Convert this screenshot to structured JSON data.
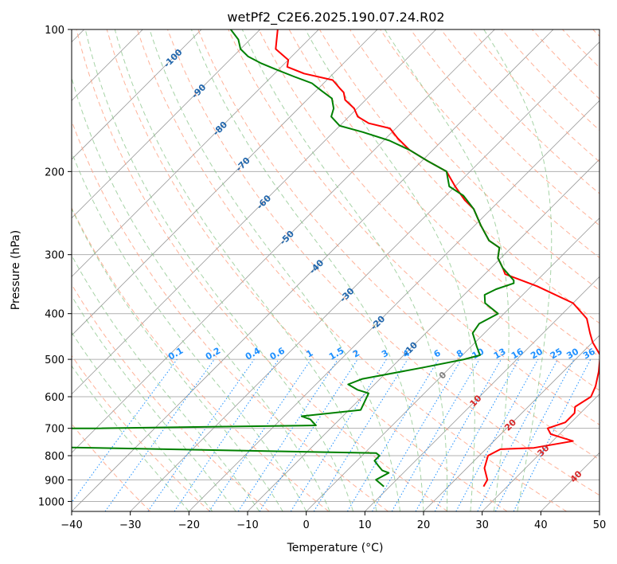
{
  "chart_data": {
    "type": "line",
    "title": "wetPf2_C2E6.2025.190.07.24.R02",
    "xlabel": "Temperature (°C)",
    "ylabel": "Pressure (hPa)",
    "xlim": [
      -40,
      50
    ],
    "ylim": [
      1050,
      100
    ],
    "y_scale": "log",
    "x_ticks": [
      -40,
      -30,
      -20,
      -10,
      0,
      10,
      20,
      30,
      40,
      50
    ],
    "y_ticks": [
      100,
      200,
      300,
      400,
      500,
      600,
      700,
      800,
      900,
      1000
    ],
    "grid": true,
    "skew": true,
    "colors": {
      "temperature": "#ff0000",
      "dewpoint": "#008000",
      "isotherm": "#999999",
      "dry_adiabat": "#ff9f80",
      "moist_adiabat": "#80c080",
      "mixing_ratio": "#1e90ff",
      "isotherm_label_upper": "#2166ac",
      "isotherm_label_lower": "#d62728",
      "freezing_label": "#808080"
    },
    "series": [
      {
        "key": "temperature",
        "points": [
          [
            26.0,
            930
          ],
          [
            25.5,
            900
          ],
          [
            23.0,
            850
          ],
          [
            21.5,
            800
          ],
          [
            22.5,
            775
          ],
          [
            28.0,
            770
          ],
          [
            33.5,
            745
          ],
          [
            28.5,
            720
          ],
          [
            27.0,
            700
          ],
          [
            29.0,
            680
          ],
          [
            29.0,
            650
          ],
          [
            28.0,
            630
          ],
          [
            29.0,
            600
          ],
          [
            28.0,
            570
          ],
          [
            26.0,
            530
          ],
          [
            23.5,
            490
          ],
          [
            20.0,
            460
          ],
          [
            18.0,
            440
          ],
          [
            15.0,
            410
          ],
          [
            10.0,
            380
          ],
          [
            1.0,
            350
          ],
          [
            -6.5,
            330
          ],
          [
            -8.0,
            320
          ],
          [
            -10.5,
            305
          ],
          [
            -12.0,
            290
          ],
          [
            -15.0,
            280
          ],
          [
            -19.0,
            260
          ],
          [
            -23.0,
            240
          ],
          [
            -26.0,
            230
          ],
          [
            -30.0,
            215
          ],
          [
            -34.0,
            200
          ],
          [
            -39.0,
            190
          ],
          [
            -44.0,
            180
          ],
          [
            -48.0,
            170
          ],
          [
            -51.0,
            162
          ],
          [
            -55.5,
            158
          ],
          [
            -58.5,
            153
          ],
          [
            -60.5,
            147
          ],
          [
            -63.5,
            141
          ],
          [
            -65.0,
            136
          ],
          [
            -66.5,
            133
          ],
          [
            -69.0,
            128
          ],
          [
            -75.0,
            124
          ],
          [
            -79.0,
            120
          ],
          [
            -80.0,
            116
          ],
          [
            -84.0,
            110
          ],
          [
            -87.0,
            100
          ]
        ]
      },
      {
        "key": "dewpoint",
        "points": [
          [
            9.0,
            930
          ],
          [
            6.5,
            900
          ],
          [
            7.5,
            870
          ],
          [
            6.0,
            860
          ],
          [
            4.5,
            840
          ],
          [
            3.0,
            820
          ],
          [
            3.0,
            800
          ],
          [
            2.0,
            790
          ],
          [
            -60.0,
            765
          ],
          [
            -100.0,
            750
          ],
          [
            -80.0,
            700
          ],
          [
            -50.0,
            700
          ],
          [
            -13.0,
            690
          ],
          [
            -15.0,
            670
          ],
          [
            -17.0,
            660
          ],
          [
            -8.0,
            640
          ],
          [
            -9.5,
            590
          ],
          [
            -12.0,
            580
          ],
          [
            -14.5,
            565
          ],
          [
            -13.0,
            550
          ],
          [
            -4.5,
            520
          ],
          [
            1.0,
            500
          ],
          [
            3.0,
            490
          ],
          [
            1.0,
            470
          ],
          [
            -2.0,
            440
          ],
          [
            -2.5,
            420
          ],
          [
            -1.0,
            400
          ],
          [
            -5.0,
            380
          ],
          [
            -6.5,
            365
          ],
          [
            -5.5,
            355
          ],
          [
            -3.5,
            345
          ],
          [
            -4.0,
            340
          ],
          [
            -8.0,
            320
          ],
          [
            -10.5,
            305
          ],
          [
            -12.0,
            290
          ],
          [
            -15.0,
            280
          ],
          [
            -19.0,
            260
          ],
          [
            -23.0,
            240
          ],
          [
            -27.0,
            225
          ],
          [
            -31.0,
            215
          ],
          [
            -34.0,
            200
          ],
          [
            -39.0,
            190
          ],
          [
            -44.0,
            180
          ],
          [
            -49.0,
            172
          ],
          [
            -55.0,
            165
          ],
          [
            -60.0,
            160
          ],
          [
            -63.0,
            153
          ],
          [
            -64.0,
            147
          ],
          [
            -66.0,
            140
          ],
          [
            -69.0,
            135
          ],
          [
            -72.0,
            130
          ],
          [
            -76.0,
            126
          ],
          [
            -80.0,
            122
          ],
          [
            -84.0,
            118
          ],
          [
            -87.5,
            114
          ],
          [
            -90.0,
            110
          ],
          [
            -92.0,
            105
          ],
          [
            -95.0,
            100
          ]
        ]
      }
    ],
    "isotherm_labels_upper": [
      {
        "t": -100,
        "p": 115,
        "text": "-100"
      },
      {
        "t": -90,
        "p": 135,
        "text": "-90"
      },
      {
        "t": -80,
        "p": 162,
        "text": "-80"
      },
      {
        "t": -70,
        "p": 193,
        "text": "-70"
      },
      {
        "t": -60,
        "p": 232,
        "text": "-60"
      },
      {
        "t": -50,
        "p": 276,
        "text": "-50"
      },
      {
        "t": -40,
        "p": 318,
        "text": "-40"
      },
      {
        "t": -30,
        "p": 365,
        "text": "-30"
      },
      {
        "t": -20,
        "p": 418,
        "text": "-20"
      },
      {
        "t": -10,
        "p": 475,
        "text": "-10"
      }
    ],
    "isotherm_labels_lower": [
      {
        "t": 0,
        "p": 540,
        "text": "0"
      },
      {
        "t": 10,
        "p": 612,
        "text": "10"
      },
      {
        "t": 20,
        "p": 688,
        "text": "20"
      },
      {
        "t": 30,
        "p": 780,
        "text": "30"
      },
      {
        "t": 40,
        "p": 885,
        "text": "40"
      }
    ],
    "mixing_ratio_labels": [
      "0.1",
      "0.2",
      "0.4",
      "0.6",
      "1",
      "1.5",
      "2",
      "3",
      "4",
      "6",
      "8",
      "10",
      "13",
      "16",
      "20",
      "25",
      "30",
      "36"
    ]
  }
}
